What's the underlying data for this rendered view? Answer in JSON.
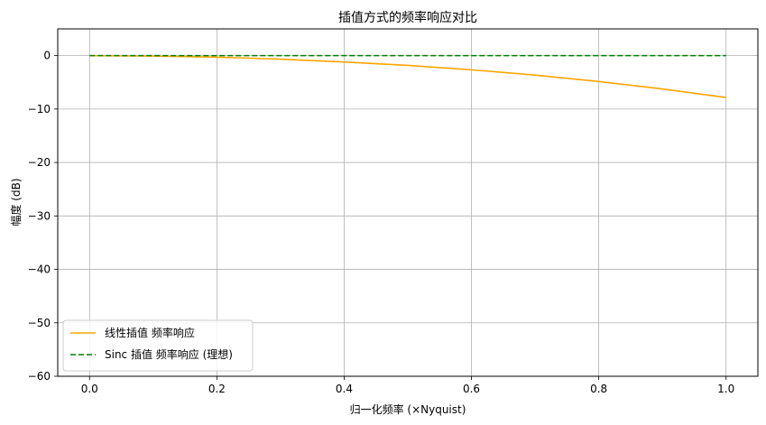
{
  "chart_data": {
    "type": "line",
    "title": "插值方式的频率响应对比",
    "xlabel": "归一化频率 (×Nyquist)",
    "ylabel": "幅度 (dB)",
    "xlim": [
      -0.05,
      1.05
    ],
    "ylim": [
      -60,
      5
    ],
    "xticks": [
      0.0,
      0.2,
      0.4,
      0.6,
      0.8,
      1.0
    ],
    "xtick_labels": [
      "0.0",
      "0.2",
      "0.4",
      "0.6",
      "0.8",
      "1.0"
    ],
    "yticks": [
      0,
      -10,
      -20,
      -30,
      -40,
      -50,
      -60
    ],
    "ytick_labels": [
      "0",
      "−10",
      "−20",
      "−30",
      "−40",
      "−50",
      "−60"
    ],
    "grid": true,
    "legend_position": "lower-left",
    "series": [
      {
        "name": "线性插值 频率响应",
        "color": "#ffa500",
        "style": "solid",
        "x": [
          0.0,
          0.1,
          0.2,
          0.3,
          0.4,
          0.5,
          0.6,
          0.7,
          0.8,
          0.9,
          1.0
        ],
        "y": [
          0.0,
          -0.07,
          -0.29,
          -0.66,
          -1.19,
          -1.83,
          -2.66,
          -3.65,
          -4.84,
          -6.23,
          -7.84
        ]
      },
      {
        "name": "Sinc 插值 频率响应 (理想)",
        "color": "#008000",
        "style": "dashed",
        "x": [
          0.0,
          1.0
        ],
        "y": [
          0.0,
          0.0
        ]
      }
    ]
  }
}
